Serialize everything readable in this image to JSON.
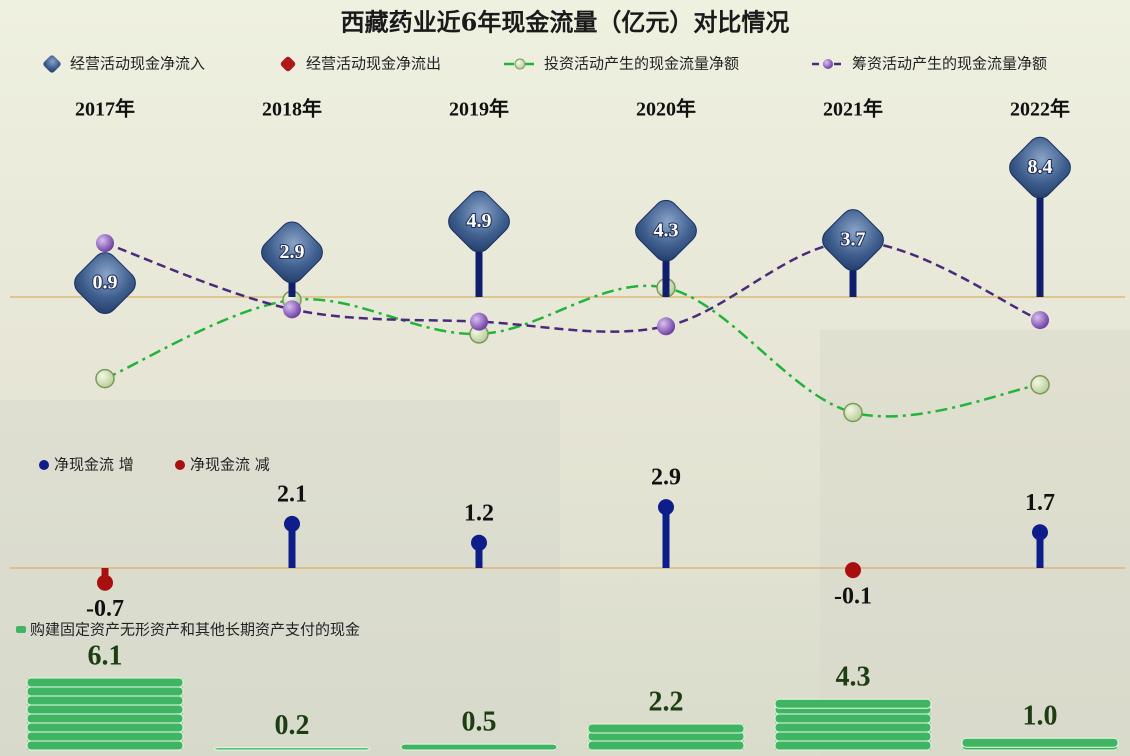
{
  "chart_data": [
    {
      "type": "lollipop-line",
      "title": "西藏药业近6年现金流量（亿元）对比情况",
      "categories": [
        "2017年",
        "2018年",
        "2019年",
        "2020年",
        "2021年",
        "2022年"
      ],
      "ylim": [
        -9,
        9.5
      ],
      "series": [
        {
          "name": "经营活动现金净流入",
          "color": "#34558a",
          "values": [
            0.9,
            2.9,
            4.9,
            4.3,
            3.7,
            8.4
          ]
        },
        {
          "name": "经营活动现金净流出",
          "color": "#b01818",
          "values": [
            null,
            null,
            null,
            null,
            null,
            null
          ]
        },
        {
          "name": "投资活动产生的现金流量净额",
          "color": "#22b33a",
          "values": [
            -5.3,
            -0.2,
            -2.4,
            0.6,
            -7.5,
            -5.7
          ]
        },
        {
          "name": "筹资活动产生的现金流量净额",
          "color": "#4a2a7a",
          "values": [
            3.5,
            -0.8,
            -1.6,
            -1.9,
            3.6,
            -1.5
          ]
        }
      ]
    },
    {
      "type": "sign-lollipop",
      "ylim": [
        -1.5,
        3.5
      ],
      "legend": [
        {
          "name": "净现金流 增",
          "color": "#0d1d8a"
        },
        {
          "name": "净现金流 减",
          "color": "#a81010"
        }
      ],
      "values": [
        -0.7,
        2.1,
        1.2,
        2.9,
        -0.1,
        1.7
      ]
    },
    {
      "type": "money-stack",
      "ylim": [
        0,
        7
      ],
      "name": "购建固定资产无形资产和其他长期资产支付的现金",
      "color": "#3fb563",
      "values": [
        6.1,
        0.2,
        0.5,
        2.2,
        4.3,
        1
      ],
      "value_labels": [
        "6.1",
        "0.2",
        "0.5",
        "2.2",
        "4.3",
        "1.0"
      ]
    }
  ]
}
